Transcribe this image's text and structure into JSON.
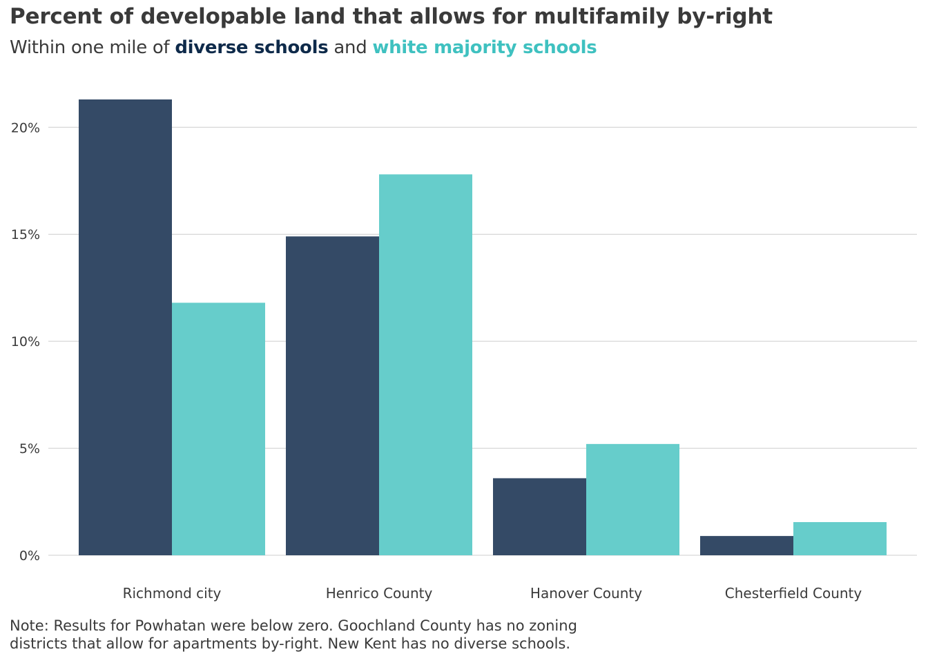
{
  "title": "Percent of developable land that allows for multifamily by-right",
  "subtitle": {
    "prefix": "Within one mile of",
    "series_a": "diverse schools",
    "joiner": "and",
    "series_b": "white majority schools"
  },
  "colors": {
    "series_a": "#344a66",
    "series_b": "#66cdcb",
    "subtitle_a": "#0e2a4a",
    "subtitle_b": "#3fc1c0",
    "grid": "#cccccc",
    "text": "#3a3a3a"
  },
  "note": {
    "line1": "Note: Results for Powhatan were below zero. Goochland County has no zoning",
    "line2": "districts that allow for apartments by-right. New Kent has no diverse schools."
  },
  "chart_data": {
    "type": "bar",
    "categories": [
      "Richmond city",
      "Henrico County",
      "Hanover County",
      "Chesterfield County"
    ],
    "series": [
      {
        "name": "diverse schools",
        "values": [
          21.3,
          14.9,
          3.6,
          0.9
        ]
      },
      {
        "name": "white majority schools",
        "values": [
          11.8,
          17.8,
          5.2,
          1.55
        ]
      }
    ],
    "yticks": [
      "0%",
      "5%",
      "10%",
      "15%",
      "20%"
    ],
    "ytick_values": [
      0,
      5,
      10,
      15,
      20
    ],
    "ylim": [
      0,
      21.3
    ],
    "grid": true,
    "legend": "subtitle",
    "title": "Percent of developable land that allows for multifamily by-right",
    "xlabel": "",
    "ylabel": ""
  }
}
